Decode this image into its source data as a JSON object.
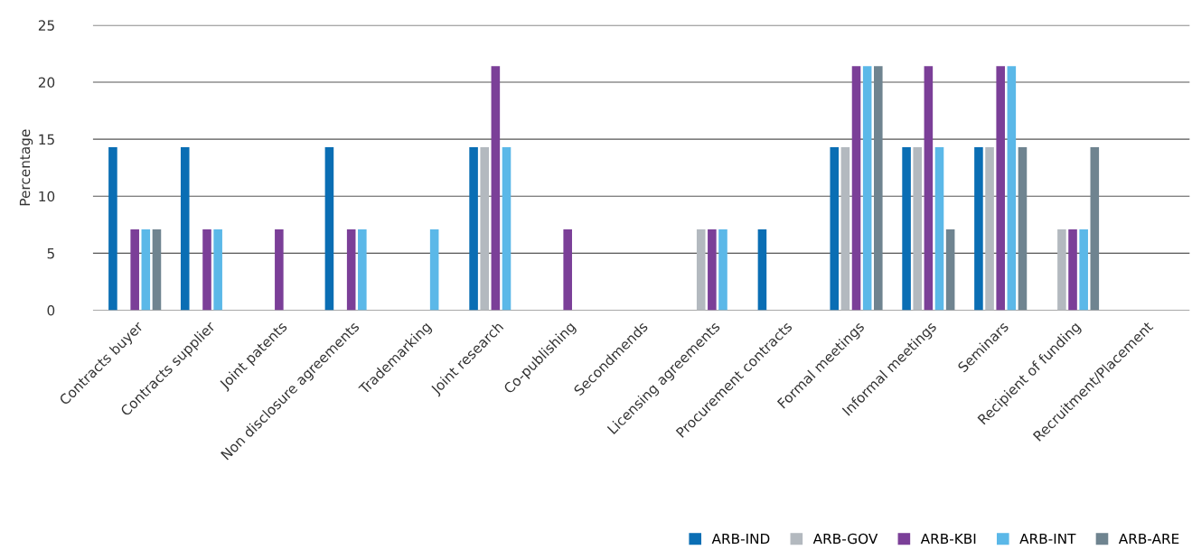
{
  "chart_data": {
    "type": "bar",
    "ylabel": "Percentage",
    "categories": [
      "Contracts buyer",
      "Contracts supplier",
      "Joint patents",
      "Non disclosure agreements",
      "Trademarking",
      "Joint research",
      "Co-publishing",
      "Secondmends",
      "Licensing agreements",
      "Procurement contracts",
      "Formal meetings",
      "Informal meetings",
      "Seminars",
      "Recipient of funding",
      "Recruitment/Placement"
    ],
    "series": [
      {
        "name": "ARB-IND",
        "color": "#0a6eb4",
        "values": [
          14.3,
          14.3,
          0,
          14.3,
          0,
          14.3,
          0,
          0,
          0,
          7.1,
          14.3,
          14.3,
          14.3,
          0,
          0
        ]
      },
      {
        "name": "ARB-GOV",
        "color": "#b3b9bf",
        "values": [
          0,
          0,
          0,
          0,
          0,
          14.3,
          0,
          0,
          7.1,
          0,
          14.3,
          14.3,
          14.3,
          7.1,
          0
        ]
      },
      {
        "name": "ARB-KBI",
        "color": "#7b3f98",
        "values": [
          7.1,
          7.1,
          7.1,
          7.1,
          0,
          21.4,
          7.1,
          0,
          7.1,
          0,
          21.4,
          21.4,
          21.4,
          7.1,
          0
        ]
      },
      {
        "name": "ARB-INT",
        "color": "#5bb8e8",
        "values": [
          7.1,
          7.1,
          0,
          7.1,
          7.1,
          14.3,
          0,
          0,
          7.1,
          0,
          21.4,
          14.3,
          21.4,
          7.1,
          0
        ]
      },
      {
        "name": "ARB-ARE",
        "color": "#6f8490",
        "values": [
          7.1,
          0,
          0,
          0,
          0,
          0,
          0,
          0,
          0,
          0,
          21.4,
          7.1,
          14.3,
          14.3,
          0
        ]
      }
    ],
    "ylim": [
      0,
      25
    ],
    "yticks": [
      0,
      5,
      10,
      15,
      20,
      25
    ],
    "grid": "y",
    "legend": "bottom right"
  }
}
